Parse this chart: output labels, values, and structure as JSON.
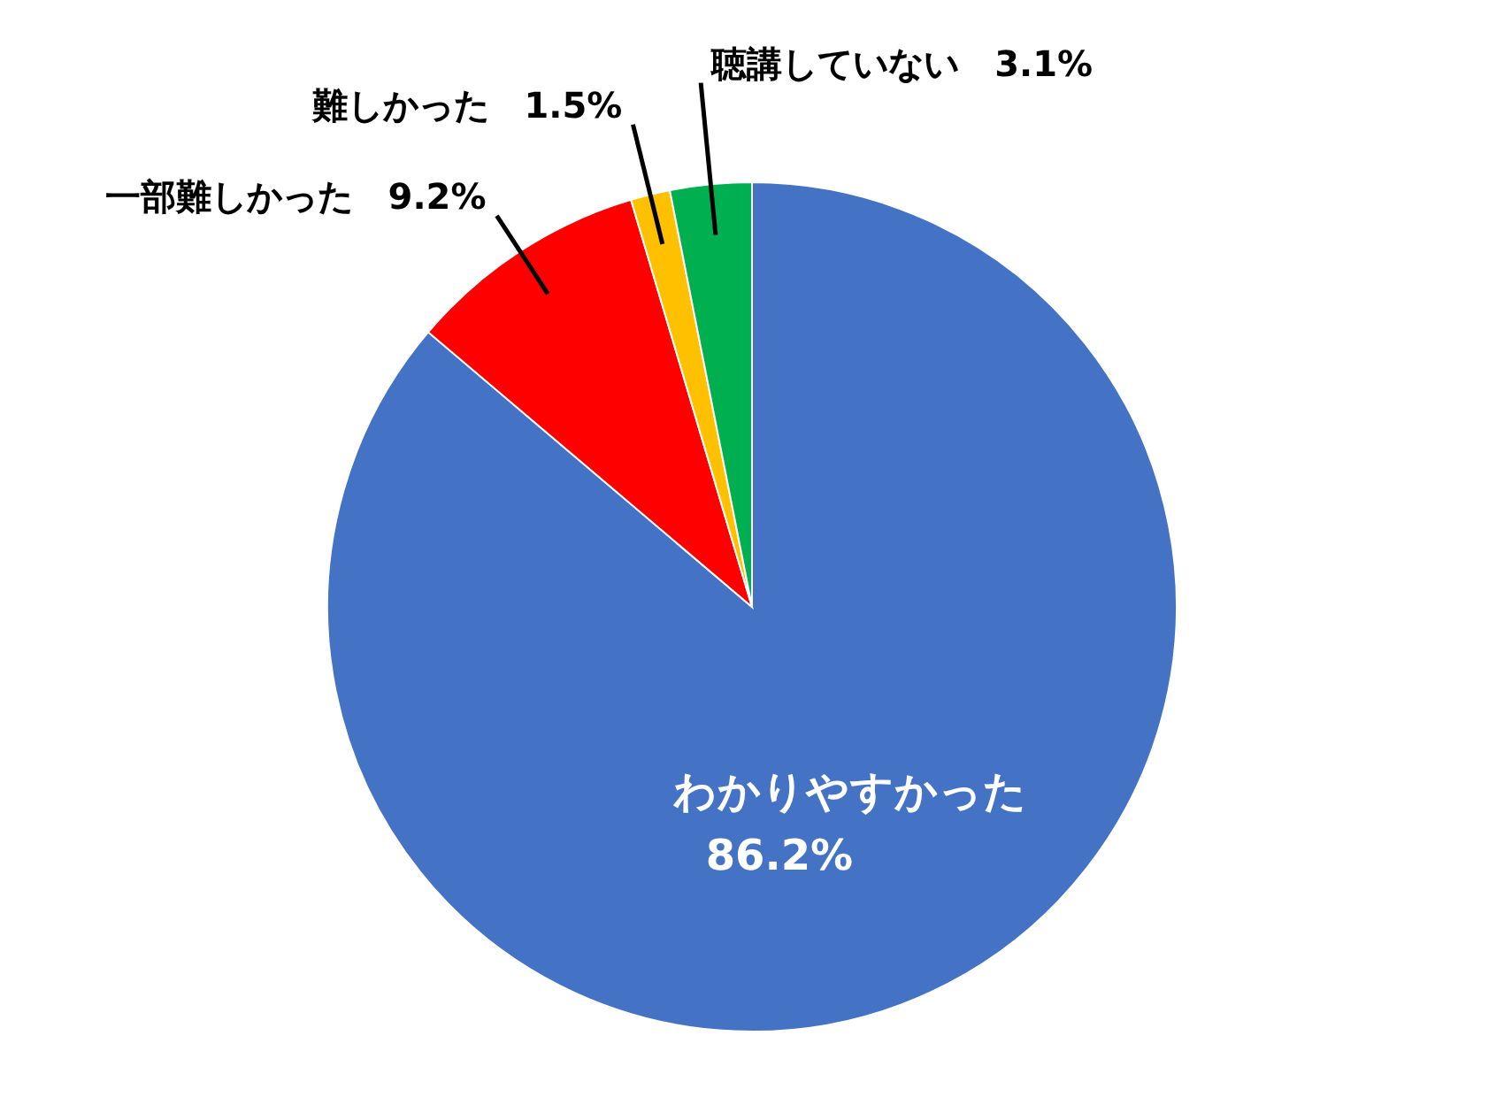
{
  "chart_data": {
    "type": "pie",
    "categories": [
      "わかりやすかった",
      "一部難しかった",
      "難しかった",
      "聴講していない"
    ],
    "values": [
      86.2,
      9.2,
      1.5,
      3.1
    ],
    "value_labels": [
      "86.2%",
      "9.2%",
      "1.5%",
      "3.1%"
    ],
    "colors": [
      "#4472c4",
      "#ff0000",
      "#ffc000",
      "#00b050"
    ]
  }
}
